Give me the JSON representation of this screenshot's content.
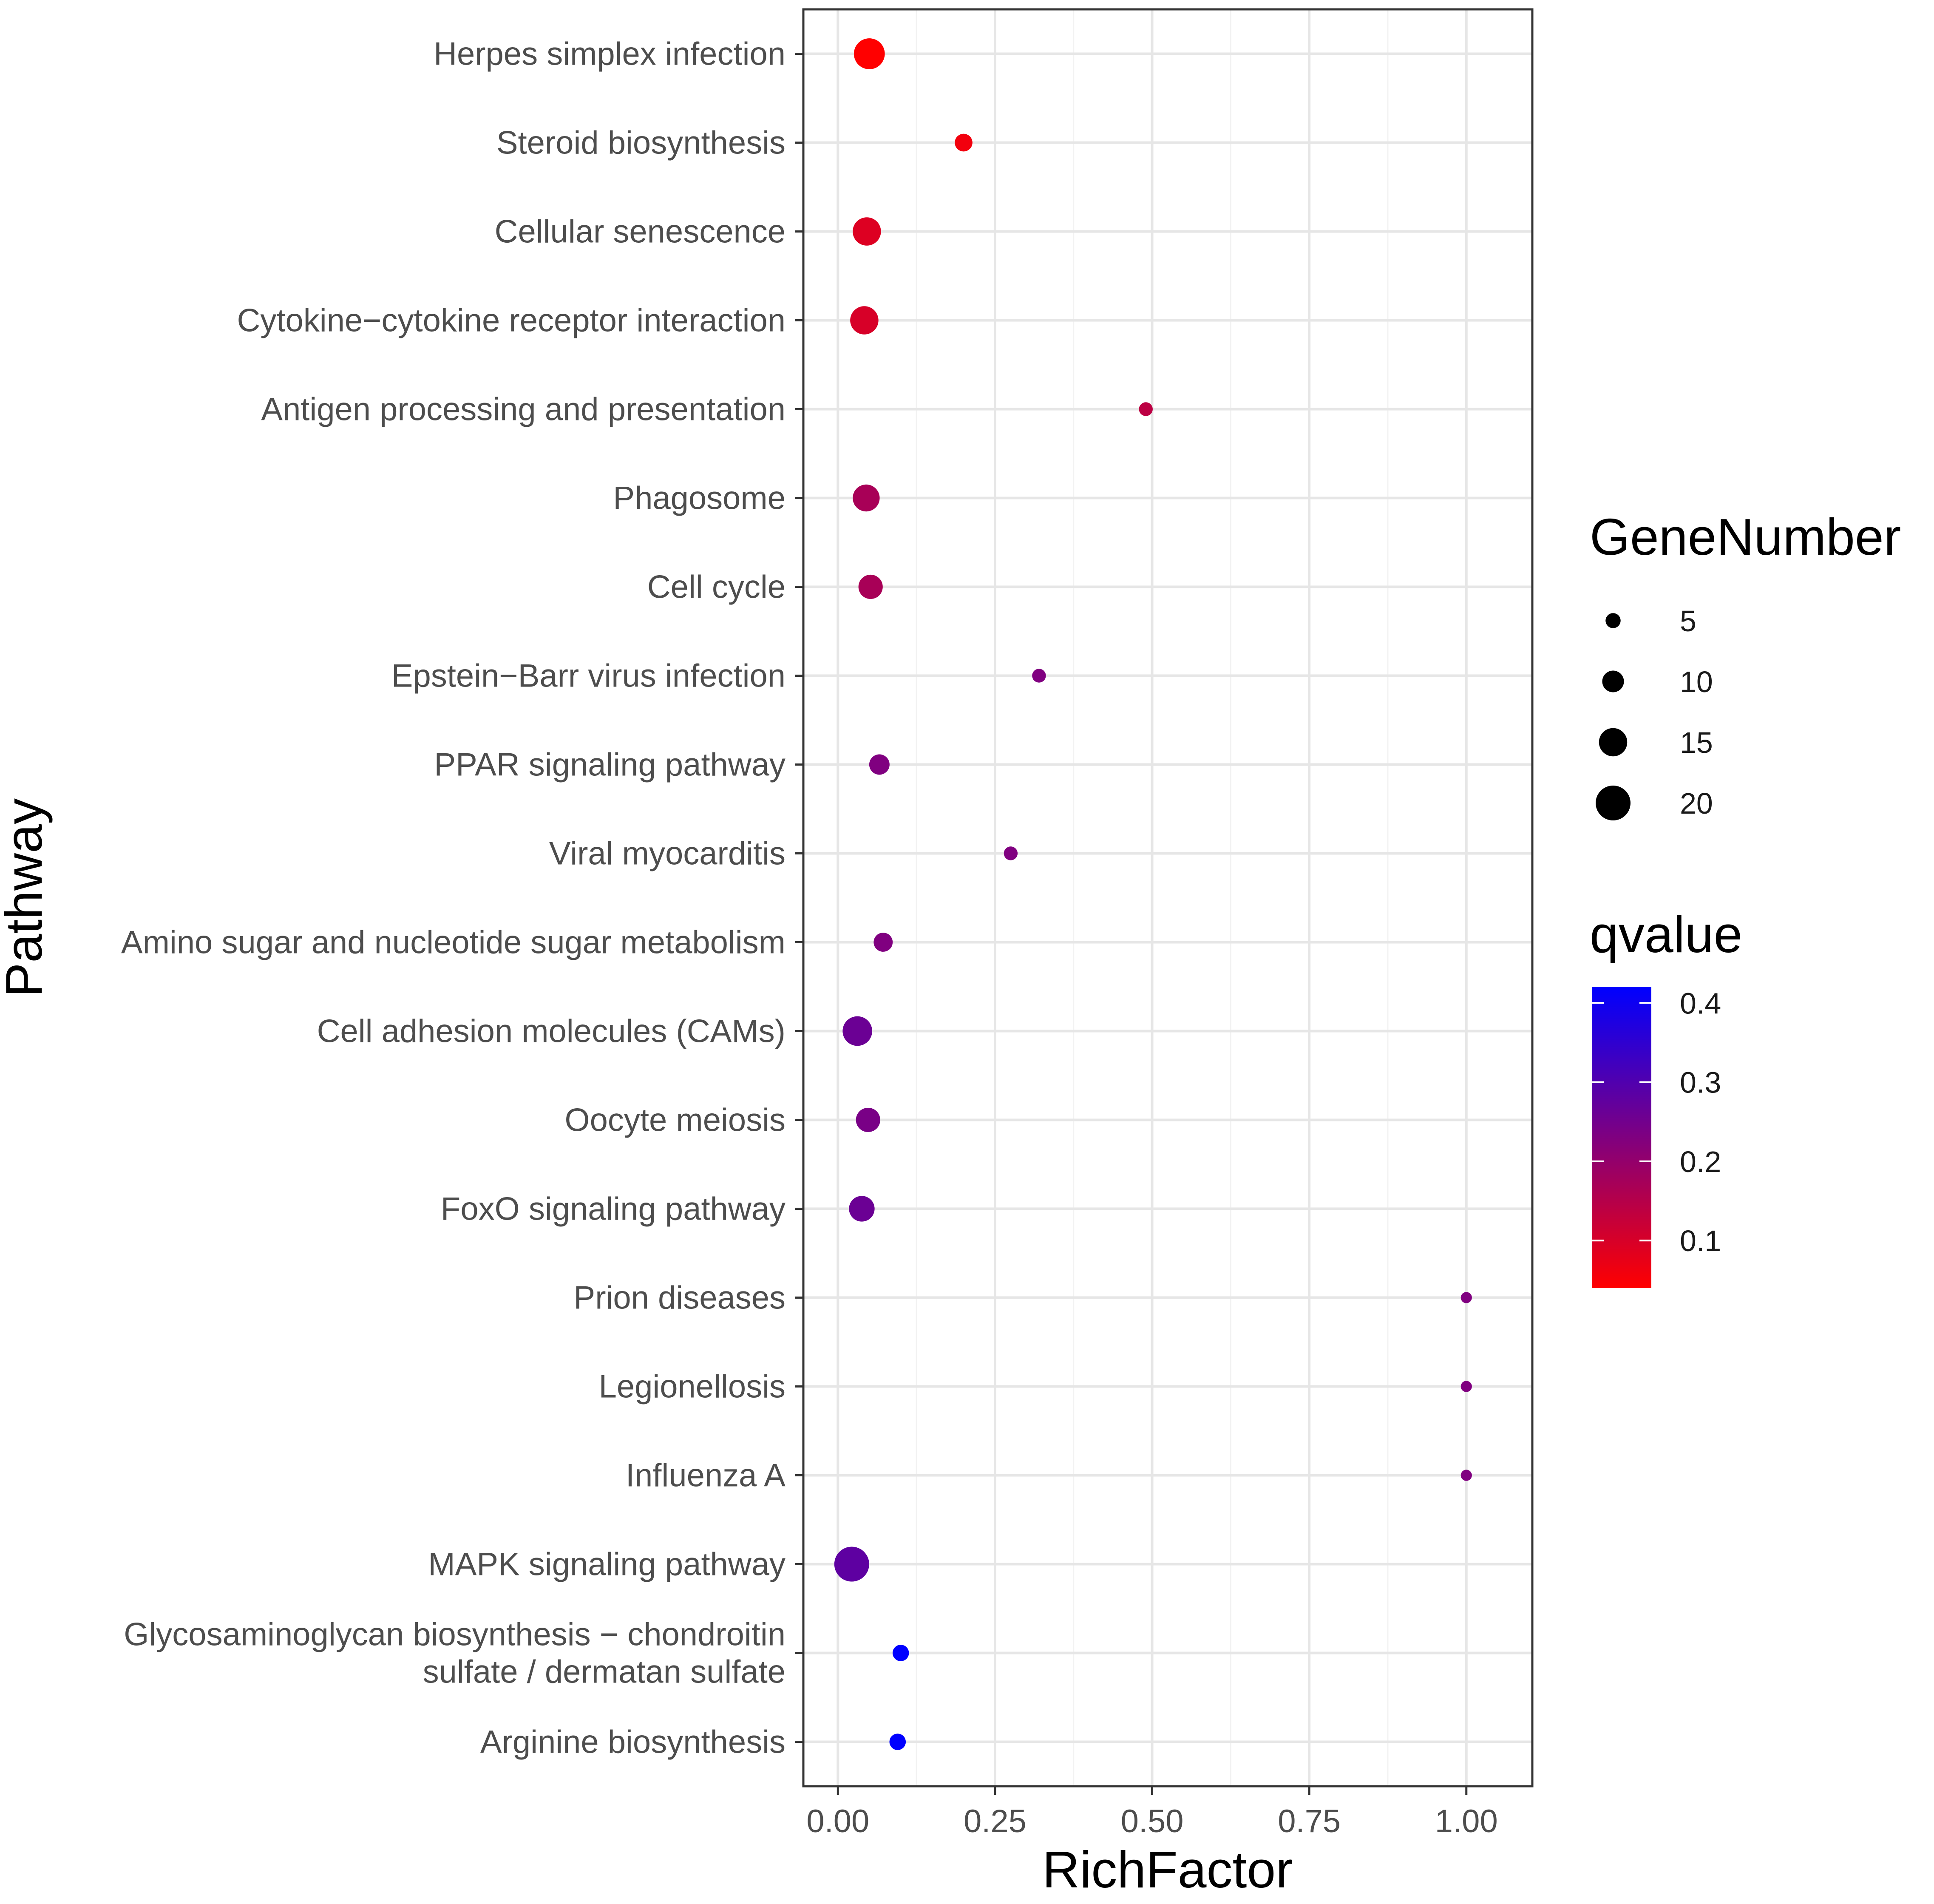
{
  "chart_data": {
    "type": "scatter",
    "xlabel": "RichFactor",
    "ylabel": "Pathway",
    "xlim": [
      -0.055,
      1.105
    ],
    "x_ticks": [
      0.0,
      0.25,
      0.5,
      0.75,
      1.0
    ],
    "x_tick_labels": [
      "0.00",
      "0.25",
      "0.50",
      "0.75",
      "1.00"
    ],
    "grid": true,
    "categories": [
      "Herpes simplex infection",
      "Steroid biosynthesis",
      "Cellular senescence",
      "Cytokine−cytokine receptor interaction",
      "Antigen processing and presentation",
      "Phagosome",
      "Cell cycle",
      "Epstein−Barr virus infection",
      "PPAR signaling pathway",
      "Viral myocarditis",
      "Amino sugar and nucleotide sugar metabolism",
      "Cell adhesion molecules (CAMs)",
      "Oocyte meiosis",
      "FoxO signaling pathway",
      "Prion diseases",
      "Legionellosis",
      "Influenza A",
      "MAPK signaling pathway",
      "Glycosaminoglycan biosynthesis − chondroitin sulfate / dermatan sulfate",
      "Arginine biosynthesis"
    ],
    "category_lines": [
      [
        "Herpes simplex infection"
      ],
      [
        "Steroid biosynthesis"
      ],
      [
        "Cellular senescence"
      ],
      [
        "Cytokine−cytokine receptor interaction"
      ],
      [
        "Antigen processing and presentation"
      ],
      [
        "Phagosome"
      ],
      [
        "Cell cycle"
      ],
      [
        "Epstein−Barr virus infection"
      ],
      [
        "PPAR signaling pathway"
      ],
      [
        "Viral myocarditis"
      ],
      [
        "Amino sugar and nucleotide sugar metabolism"
      ],
      [
        "Cell adhesion molecules (CAMs)"
      ],
      [
        "Oocyte meiosis"
      ],
      [
        "FoxO signaling pathway"
      ],
      [
        "Prion diseases"
      ],
      [
        "Legionellosis"
      ],
      [
        "Influenza A"
      ],
      [
        "MAPK signaling pathway"
      ],
      [
        "Glycosaminoglycan biosynthesis − chondroitin",
        "sulfate / dermatan sulfate"
      ],
      [
        "Arginine biosynthesis"
      ]
    ],
    "points": [
      {
        "pathway": "Herpes simplex infection",
        "rich_factor": 0.05,
        "gene_number": 17,
        "qvalue": 0.04
      },
      {
        "pathway": "Steroid biosynthesis",
        "rich_factor": 0.2,
        "gene_number": 7,
        "qvalue": 0.06
      },
      {
        "pathway": "Cellular senescence",
        "rich_factor": 0.046,
        "gene_number": 15,
        "qvalue": 0.09
      },
      {
        "pathway": "Cytokine−cytokine receptor interaction",
        "rich_factor": 0.042,
        "gene_number": 15,
        "qvalue": 0.1
      },
      {
        "pathway": "Antigen processing and presentation",
        "rich_factor": 0.49,
        "gene_number": 4,
        "qvalue": 0.14
      },
      {
        "pathway": "Phagosome",
        "rich_factor": 0.045,
        "gene_number": 14,
        "qvalue": 0.17
      },
      {
        "pathway": "Cell cycle",
        "rich_factor": 0.052,
        "gene_number": 12,
        "qvalue": 0.17
      },
      {
        "pathway": "Epstein−Barr virus infection",
        "rich_factor": 0.32,
        "gene_number": 4,
        "qvalue": 0.23
      },
      {
        "pathway": "PPAR signaling pathway",
        "rich_factor": 0.066,
        "gene_number": 9,
        "qvalue": 0.23
      },
      {
        "pathway": "Viral myocarditis",
        "rich_factor": 0.275,
        "gene_number": 4,
        "qvalue": 0.23
      },
      {
        "pathway": "Amino sugar and nucleotide sugar metabolism",
        "rich_factor": 0.072,
        "gene_number": 8,
        "qvalue": 0.23
      },
      {
        "pathway": "Cell adhesion molecules (CAMs)",
        "rich_factor": 0.031,
        "gene_number": 16,
        "qvalue": 0.26
      },
      {
        "pathway": "Oocyte meiosis",
        "rich_factor": 0.048,
        "gene_number": 12,
        "qvalue": 0.24
      },
      {
        "pathway": "FoxO signaling pathway",
        "rich_factor": 0.038,
        "gene_number": 13,
        "qvalue": 0.26
      },
      {
        "pathway": "Prion diseases",
        "rich_factor": 1.0,
        "gene_number": 2,
        "qvalue": 0.23
      },
      {
        "pathway": "Legionellosis",
        "rich_factor": 1.0,
        "gene_number": 2,
        "qvalue": 0.23
      },
      {
        "pathway": "Influenza A",
        "rich_factor": 1.0,
        "gene_number": 2,
        "qvalue": 0.23
      },
      {
        "pathway": "MAPK signaling pathway",
        "rich_factor": 0.022,
        "gene_number": 20,
        "qvalue": 0.28
      },
      {
        "pathway": "Glycosaminoglycan biosynthesis − chondroitin sulfate / dermatan sulfate",
        "rich_factor": 0.1,
        "gene_number": 6,
        "qvalue": 0.42
      },
      {
        "pathway": "Arginine biosynthesis",
        "rich_factor": 0.095,
        "gene_number": 6,
        "qvalue": 0.42
      }
    ],
    "size_legend": {
      "title": "GeneNumber",
      "values": [
        5,
        10,
        15,
        20
      ],
      "labels": [
        "5",
        "10",
        "15",
        "20"
      ]
    },
    "color_legend": {
      "title": "qvalue",
      "range": [
        0.04,
        0.42
      ],
      "low_color": "#ff0000",
      "high_color": "#0000ff",
      "ticks": [
        0.1,
        0.2,
        0.3,
        0.4
      ],
      "tick_labels": [
        "0.1",
        "0.2",
        "0.3",
        "0.4"
      ]
    }
  },
  "colors": {
    "panel_border": "#333333",
    "grid_major": "#e6e6e6",
    "grid_minor": "#f2f2f2",
    "tick_label": "#4d4d4d",
    "tick_mark": "#333333"
  }
}
